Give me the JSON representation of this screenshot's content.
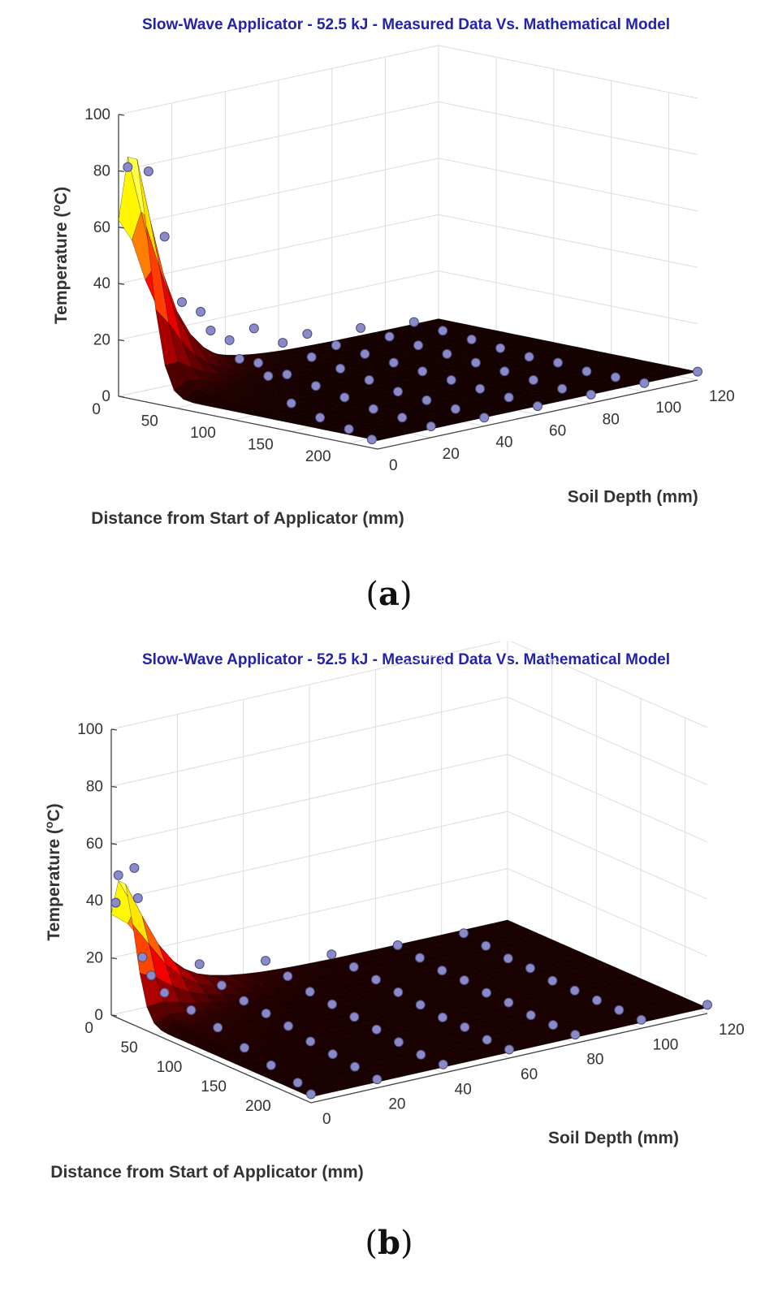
{
  "chart_data": [
    {
      "type": "surface3d",
      "panel_label": "a",
      "title": "Slow-Wave Applicator - 52.5 kJ - Measured Data Vs. Mathematical Model",
      "xlabel": "Distance from Start of Applicator (mm)",
      "ylabel": "Soil Depth (mm)",
      "zlabel": "Temperature (oC)",
      "xlim": [
        0,
        225
      ],
      "ylim": [
        0,
        120
      ],
      "zlim": [
        0,
        100
      ],
      "xticks": [
        0,
        50,
        100,
        150,
        200
      ],
      "yticks": [
        0,
        20,
        40,
        60,
        80,
        100,
        120
      ],
      "zticks": [
        0,
        20,
        40,
        60,
        80,
        100
      ],
      "colormap": "hot",
      "model": {
        "peak": 86,
        "peak_x": 12,
        "x_spread": 14,
        "depth_decay": 10,
        "tail_x": 34,
        "ambient": 3
      },
      "series": [
        {
          "name": "Measured Data",
          "marker": "circle",
          "color": "#8a8acb",
          "points": [
            [
              8,
              0,
              82
            ],
            [
              26,
              0,
              82
            ],
            [
              40,
              0,
              60
            ],
            [
              55,
              0,
              38
            ],
            [
              80,
              0,
              30
            ],
            [
              105,
              0,
              22
            ],
            [
              130,
              0,
              18
            ],
            [
              150,
              0,
              10
            ],
            [
              175,
              0,
              7
            ],
            [
              200,
              0,
              5
            ],
            [
              220,
              0,
              3
            ],
            [
              25,
              20,
              28
            ],
            [
              50,
              20,
              20
            ],
            [
              75,
              20,
              14
            ],
            [
              100,
              20,
              12
            ],
            [
              125,
              20,
              10
            ],
            [
              150,
              20,
              8
            ],
            [
              175,
              20,
              6
            ],
            [
              200,
              20,
              5
            ],
            [
              225,
              20,
              4
            ],
            [
              25,
              40,
              18
            ],
            [
              50,
              40,
              15
            ],
            [
              75,
              40,
              12
            ],
            [
              100,
              40,
              10
            ],
            [
              125,
              40,
              8
            ],
            [
              150,
              40,
              6
            ],
            [
              175,
              40,
              5
            ],
            [
              200,
              40,
              4
            ],
            [
              225,
              40,
              3
            ],
            [
              25,
              60,
              12
            ],
            [
              50,
              60,
              10
            ],
            [
              75,
              60,
              9
            ],
            [
              100,
              60,
              8
            ],
            [
              125,
              60,
              7
            ],
            [
              150,
              60,
              6
            ],
            [
              175,
              60,
              5
            ],
            [
              200,
              60,
              4
            ],
            [
              225,
              60,
              3
            ],
            [
              25,
              80,
              10
            ],
            [
              50,
              80,
              9
            ],
            [
              75,
              80,
              8
            ],
            [
              100,
              80,
              7
            ],
            [
              125,
              80,
              6
            ],
            [
              150,
              80,
              5
            ],
            [
              175,
              80,
              4
            ],
            [
              200,
              80,
              3
            ],
            [
              225,
              80,
              3
            ],
            [
              25,
              100,
              8
            ],
            [
              50,
              100,
              7
            ],
            [
              75,
              100,
              6
            ],
            [
              100,
              100,
              5
            ],
            [
              125,
              100,
              4
            ],
            [
              150,
              100,
              4
            ],
            [
              175,
              100,
              3
            ],
            [
              200,
              100,
              3
            ],
            [
              225,
              100,
              3
            ],
            [
              225,
              120,
              3
            ]
          ]
        }
      ]
    },
    {
      "type": "surface3d",
      "panel_label": "b",
      "title": "Slow-Wave Applicator - 52.5 kJ - Measured Data Vs. Mathematical Model",
      "xlabel": "Distance from Start of Applicator (mm)",
      "ylabel": "Soil Depth (mm)",
      "zlabel": "Temperature (oC)",
      "xlim": [
        0,
        225
      ],
      "ylim": [
        0,
        120
      ],
      "zlim": [
        0,
        100
      ],
      "xticks": [
        0,
        50,
        100,
        150,
        200
      ],
      "yticks": [
        0,
        20,
        40,
        60,
        80,
        100,
        120
      ],
      "zticks": [
        0,
        20,
        40,
        60,
        80,
        100
      ],
      "colormap": "hot",
      "model": {
        "peak": 48,
        "peak_x": 12,
        "x_spread": 14,
        "depth_decay": 10,
        "tail_x": 40,
        "ambient": 2
      },
      "series": [
        {
          "name": "Measured Data",
          "marker": "circle",
          "color": "#8a8acb",
          "points": [
            [
              8,
              0,
              50
            ],
            [
              26,
              0,
              55
            ],
            [
              5,
              0,
              40
            ],
            [
              30,
              0,
              45
            ],
            [
              35,
              0,
              25
            ],
            [
              45,
              0,
              20
            ],
            [
              60,
              0,
              16
            ],
            [
              90,
              0,
              14
            ],
            [
              120,
              0,
              12
            ],
            [
              150,
              0,
              9
            ],
            [
              180,
              0,
              7
            ],
            [
              210,
              0,
              5
            ],
            [
              225,
              0,
              3
            ],
            [
              25,
              20,
              16
            ],
            [
              50,
              20,
              12
            ],
            [
              75,
              20,
              10
            ],
            [
              100,
              20,
              9
            ],
            [
              125,
              20,
              8
            ],
            [
              150,
              20,
              6
            ],
            [
              175,
              20,
              5
            ],
            [
              200,
              20,
              4
            ],
            [
              225,
              20,
              3
            ],
            [
              25,
              40,
              12
            ],
            [
              50,
              40,
              10
            ],
            [
              75,
              40,
              8
            ],
            [
              100,
              40,
              7
            ],
            [
              125,
              40,
              6
            ],
            [
              150,
              40,
              5
            ],
            [
              175,
              40,
              4
            ],
            [
              200,
              40,
              3
            ],
            [
              225,
              40,
              3
            ],
            [
              25,
              60,
              9
            ],
            [
              50,
              60,
              8
            ],
            [
              75,
              60,
              7
            ],
            [
              100,
              60,
              6
            ],
            [
              125,
              60,
              5
            ],
            [
              150,
              60,
              4
            ],
            [
              175,
              60,
              4
            ],
            [
              200,
              60,
              3
            ],
            [
              225,
              60,
              3
            ],
            [
              25,
              80,
              7
            ],
            [
              50,
              80,
              6
            ],
            [
              75,
              80,
              5
            ],
            [
              100,
              80,
              5
            ],
            [
              125,
              80,
              4
            ],
            [
              150,
              80,
              4
            ],
            [
              175,
              80,
              3
            ],
            [
              200,
              80,
              3
            ],
            [
              225,
              80,
              3
            ],
            [
              25,
              100,
              6
            ],
            [
              50,
              100,
              5
            ],
            [
              75,
              100,
              4
            ],
            [
              100,
              100,
              4
            ],
            [
              125,
              100,
              3
            ],
            [
              150,
              100,
              3
            ],
            [
              175,
              100,
              3
            ],
            [
              200,
              100,
              3
            ],
            [
              225,
              100,
              3
            ],
            [
              225,
              120,
              3
            ]
          ]
        }
      ]
    }
  ]
}
